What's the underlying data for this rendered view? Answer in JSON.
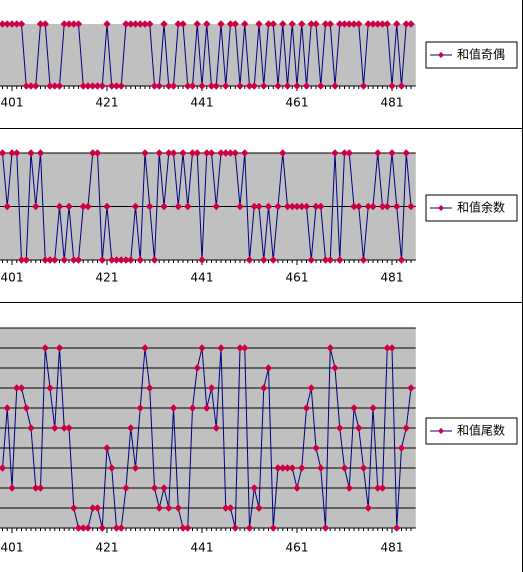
{
  "chart_data": [
    {
      "type": "line",
      "x": [
        399,
        400,
        401,
        402,
        403,
        404,
        405,
        406,
        407,
        408,
        409,
        410,
        411,
        412,
        413,
        414,
        415,
        416,
        417,
        418,
        419,
        420,
        421,
        422,
        423,
        424,
        425,
        426,
        427,
        428,
        429,
        430,
        431,
        432,
        433,
        434,
        435,
        436,
        437,
        438,
        439,
        440,
        441,
        442,
        443,
        444,
        445,
        446,
        447,
        448,
        449,
        450,
        451,
        452,
        453,
        454,
        455,
        456,
        457,
        458,
        459,
        460,
        461,
        462,
        463,
        464,
        465,
        466,
        467,
        468,
        469,
        470,
        471,
        472,
        473,
        474,
        475,
        476,
        477,
        478,
        479,
        480,
        481,
        482,
        483,
        484,
        485
      ],
      "xlim": [
        398,
        486
      ],
      "xticks": [
        401,
        421,
        441,
        461,
        481
      ],
      "ylim": [
        0,
        1
      ],
      "yticks": [
        0,
        1
      ],
      "grid": false,
      "background": "#c0c0c0",
      "series": [
        {
          "name": "和值奇偶",
          "color": "#000080",
          "marker_color": "#cc0044",
          "values": [
            1,
            1,
            1,
            1,
            1,
            0,
            0,
            0,
            1,
            1,
            0,
            0,
            0,
            1,
            1,
            1,
            1,
            0,
            0,
            0,
            0,
            0,
            1,
            0,
            0,
            0,
            1,
            1,
            1,
            1,
            1,
            1,
            0,
            0,
            1,
            0,
            0,
            1,
            1,
            0,
            0,
            1,
            0,
            1,
            0,
            0,
            1,
            0,
            1,
            1,
            0,
            1,
            0,
            0,
            1,
            0,
            1,
            1,
            0,
            1,
            0,
            1,
            0,
            1,
            0,
            1,
            1,
            0,
            1,
            1,
            0,
            1,
            1,
            1,
            1,
            1,
            0,
            1,
            1,
            1,
            1,
            1,
            0,
            1,
            0,
            1,
            1
          ]
        }
      ]
    },
    {
      "type": "line",
      "x": [
        399,
        400,
        401,
        402,
        403,
        404,
        405,
        406,
        407,
        408,
        409,
        410,
        411,
        412,
        413,
        414,
        415,
        416,
        417,
        418,
        419,
        420,
        421,
        422,
        423,
        424,
        425,
        426,
        427,
        428,
        429,
        430,
        431,
        432,
        433,
        434,
        435,
        436,
        437,
        438,
        439,
        440,
        441,
        442,
        443,
        444,
        445,
        446,
        447,
        448,
        449,
        450,
        451,
        452,
        453,
        454,
        455,
        456,
        457,
        458,
        459,
        460,
        461,
        462,
        463,
        464,
        465,
        466,
        467,
        468,
        469,
        470,
        471,
        472,
        473,
        474,
        475,
        476,
        477,
        478,
        479,
        480,
        481,
        482,
        483,
        484,
        485
      ],
      "xlim": [
        398,
        486
      ],
      "xticks": [
        401,
        421,
        441,
        461,
        481
      ],
      "ylim": [
        0,
        2
      ],
      "yticks": [
        0,
        1,
        2
      ],
      "grid": true,
      "background": "#c0c0c0",
      "series": [
        {
          "name": "和值余数",
          "color": "#000080",
          "marker_color": "#cc0044",
          "values": [
            2,
            1,
            2,
            2,
            0,
            0,
            2,
            1,
            2,
            0,
            0,
            0,
            1,
            0,
            1,
            0,
            0,
            1,
            1,
            2,
            2,
            0,
            1,
            0,
            0,
            0,
            0,
            0,
            1,
            0,
            2,
            1,
            0,
            2,
            1,
            2,
            2,
            1,
            2,
            1,
            2,
            2,
            0,
            2,
            2,
            1,
            2,
            2,
            2,
            2,
            1,
            2,
            0,
            1,
            1,
            0,
            1,
            0,
            1,
            2,
            1,
            1,
            1,
            1,
            1,
            0,
            1,
            1,
            0,
            0,
            2,
            0,
            2,
            2,
            1,
            1,
            0,
            1,
            1,
            2,
            1,
            1,
            2,
            1,
            0,
            2,
            1
          ]
        }
      ]
    },
    {
      "type": "line",
      "x": [
        399,
        400,
        401,
        402,
        403,
        404,
        405,
        406,
        407,
        408,
        409,
        410,
        411,
        412,
        413,
        414,
        415,
        416,
        417,
        418,
        419,
        420,
        421,
        422,
        423,
        424,
        425,
        426,
        427,
        428,
        429,
        430,
        431,
        432,
        433,
        434,
        435,
        436,
        437,
        438,
        439,
        440,
        441,
        442,
        443,
        444,
        445,
        446,
        447,
        448,
        449,
        450,
        451,
        452,
        453,
        454,
        455,
        456,
        457,
        458,
        459,
        460,
        461,
        462,
        463,
        464,
        465,
        466,
        467,
        468,
        469,
        470,
        471,
        472,
        473,
        474,
        475,
        476,
        477,
        478,
        479,
        480,
        481,
        482,
        483,
        484,
        485
      ],
      "xlim": [
        398,
        486
      ],
      "xticks": [
        401,
        421,
        441,
        461,
        481
      ],
      "ylim": [
        0,
        10
      ],
      "yticks": [
        0,
        1,
        2,
        3,
        4,
        5,
        6,
        7,
        8,
        9,
        10
      ],
      "grid": true,
      "background": "#c0c0c0",
      "series": [
        {
          "name": "和值尾数",
          "color": "#000080",
          "marker_color": "#cc0044",
          "values": [
            3,
            6,
            2,
            7,
            7,
            6,
            5,
            2,
            2,
            9,
            7,
            5,
            9,
            5,
            5,
            1,
            0,
            0,
            0,
            1,
            1,
            0,
            4,
            3,
            0,
            0,
            2,
            5,
            3,
            6,
            9,
            7,
            2,
            1,
            2,
            1,
            6,
            1,
            0,
            0,
            6,
            8,
            9,
            6,
            7,
            5,
            9,
            1,
            1,
            0,
            9,
            9,
            0,
            2,
            1,
            7,
            8,
            0,
            3,
            3,
            3,
            3,
            2,
            3,
            6,
            7,
            4,
            3,
            0,
            9,
            8,
            5,
            3,
            2,
            6,
            5,
            3,
            1,
            6,
            2,
            2,
            9,
            9,
            0,
            4,
            5,
            7
          ]
        }
      ]
    }
  ]
}
